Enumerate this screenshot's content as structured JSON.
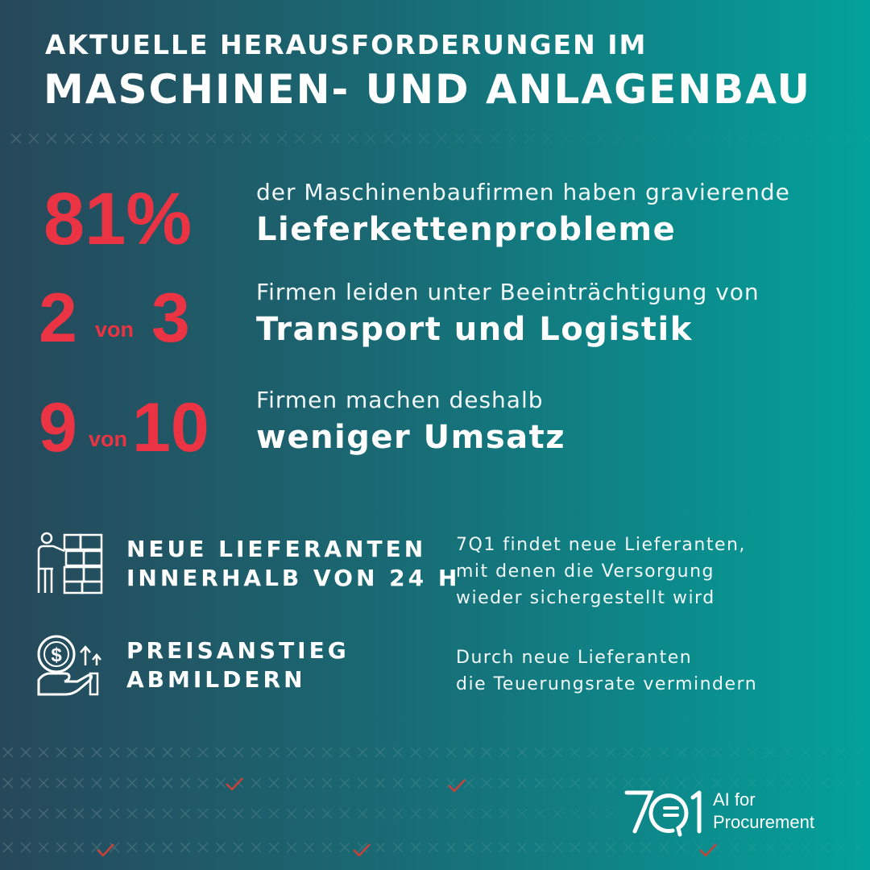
{
  "title": {
    "line1": "AKTUELLE HERAUSFORDERUNGEN IM",
    "line2": "MASCHINEN- UND ANLAGENBAU"
  },
  "stats": [
    {
      "value": "81%",
      "lead": "der Maschinenbaufirmen haben gravierende",
      "highlight": "Lieferkettenprobleme"
    },
    {
      "value_a": "2",
      "connector": "von",
      "value_b": "3",
      "lead": "Firmen leiden unter Beeinträchtigung von",
      "highlight": "Transport und Logistik"
    },
    {
      "value_a": "9",
      "connector": "von",
      "value_b": "10",
      "lead": "Firmen machen deshalb",
      "highlight": "weniger Umsatz"
    }
  ],
  "benefits": [
    {
      "icon": "supplier-boxes-icon",
      "heading_lines": [
        "NEUE LIEFERANTEN",
        "INNERHALB VON 24 H"
      ],
      "desc_lines": [
        "7Q1 findet neue Lieferanten,",
        "mit denen die Versorgung",
        "wieder sichergestellt wird"
      ]
    },
    {
      "icon": "dollar-hand-icon",
      "heading_lines": [
        "PREISANSTIEG",
        "ABMILDERN"
      ],
      "desc_lines": [
        "Durch neue Lieferanten",
        "die Teuerungsrate vermindern"
      ]
    }
  ],
  "logo": {
    "mark": "7Q1",
    "tagline_line1": "AI for",
    "tagline_line2": "Procurement"
  },
  "colors": {
    "accent_red": "#ea3443",
    "gradient_left": "#26485a",
    "gradient_right": "#03a19b",
    "text": "#ffffff"
  }
}
